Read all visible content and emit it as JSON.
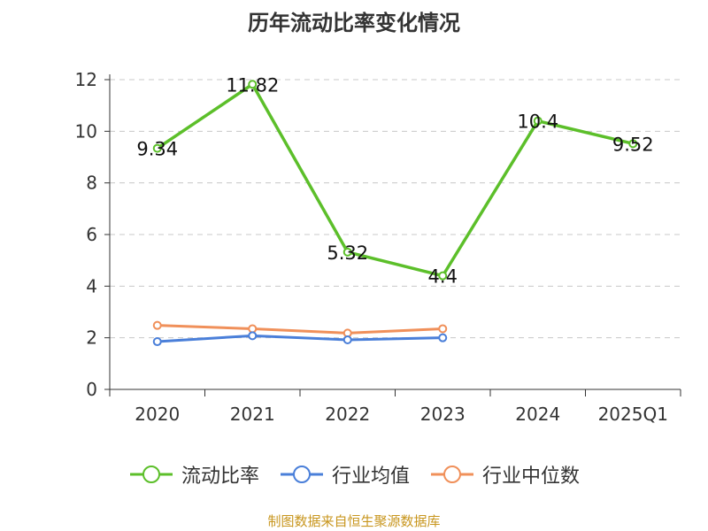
{
  "title": "历年流动比率变化情况",
  "source": "制图数据来自恒生聚源数据库",
  "chart_data": {
    "type": "line",
    "categories": [
      "2020",
      "2021",
      "2022",
      "2023",
      "2024",
      "2025Q1"
    ],
    "ylim": [
      0,
      12
    ],
    "yticks": [
      0,
      2,
      4,
      6,
      8,
      10,
      12
    ],
    "grid": true,
    "legend_position": "bottom",
    "series": [
      {
        "name": "流动比率",
        "color": "#5cbf2a",
        "values": [
          9.34,
          11.82,
          5.32,
          4.4,
          10.4,
          9.52
        ],
        "labels": [
          "9.34",
          "11.82",
          "5.32",
          "4.4",
          "10.4",
          "9.52"
        ]
      },
      {
        "name": "行业均值",
        "color": "#4a7fd9",
        "values": [
          1.85,
          2.08,
          1.92,
          2.0,
          null,
          null
        ]
      },
      {
        "name": "行业中位数",
        "color": "#f0905a",
        "values": [
          2.48,
          2.35,
          2.18,
          2.35,
          null,
          null
        ]
      }
    ]
  }
}
